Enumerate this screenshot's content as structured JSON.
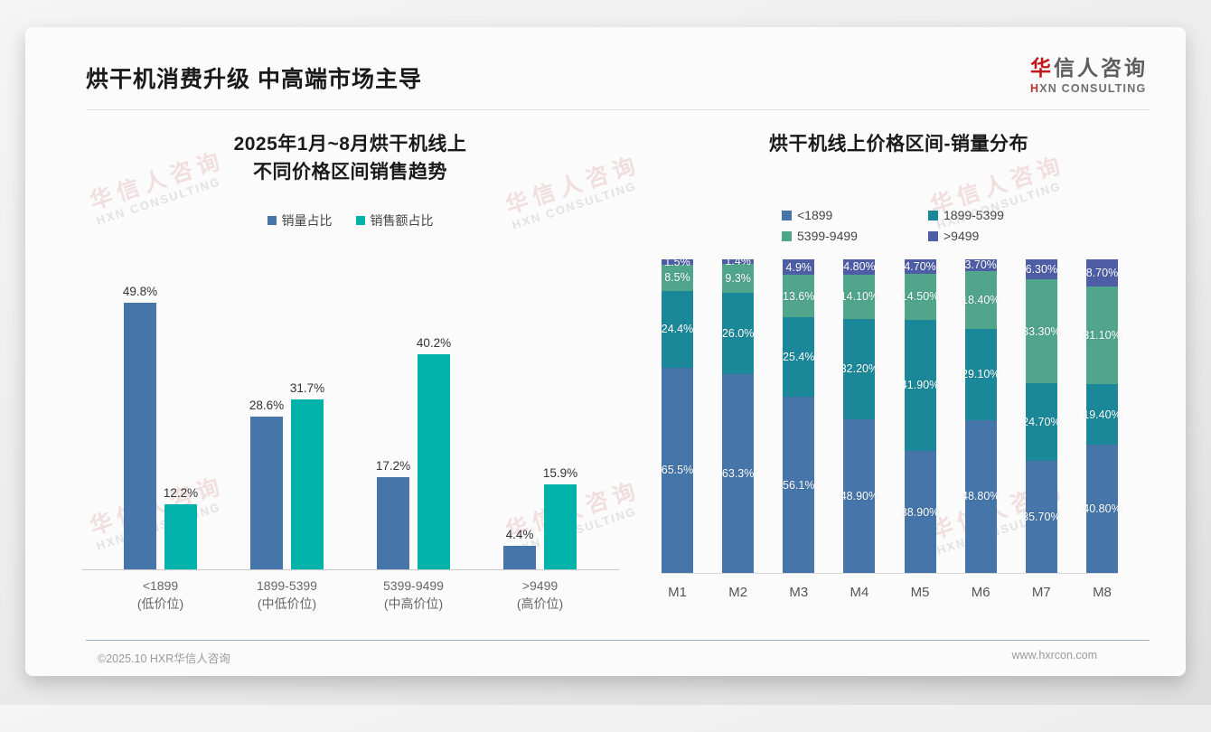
{
  "page": {
    "title": "烘干机消费升级 中高端市场主导",
    "logo": {
      "cn_accent": "华",
      "cn_rest": "信人咨询",
      "en_accent": "H",
      "en_rest": "XN CONSULTING"
    },
    "watermark": {
      "line1": "华信人咨询",
      "line2": "HXN CONSULTING"
    },
    "footer": {
      "copyright": "©2025.10 HXR华信人咨询",
      "website": "www.hxrcon.com"
    }
  },
  "colors": {
    "steel_blue": "#4575a9",
    "bright_teal": "#00b2aa",
    "dark_teal": "#1b8899",
    "sea_green": "#50a58a",
    "slate_blue": "#4e5ea6",
    "accent_red": "#c0191d"
  },
  "chart_data": [
    {
      "type": "bar",
      "title_lines": [
        "2025年1月~8月烘干机线上",
        "不同价格区间销售趋势"
      ],
      "categories": [
        {
          "line1": "<1899",
          "line2": "(低价位)"
        },
        {
          "line1": "1899-5399",
          "line2": "(中低价位)"
        },
        {
          "line1": "5399-9499",
          "line2": "(中高价位)"
        },
        {
          "line1": ">9499",
          "line2": "(高价位)"
        }
      ],
      "series": [
        {
          "name": "销量占比",
          "color": "#4575a9",
          "values": [
            49.8,
            28.6,
            17.2,
            4.4
          ],
          "labels": [
            "49.8%",
            "28.6%",
            "17.2%",
            "4.4%"
          ]
        },
        {
          "name": "销售额占比",
          "color": "#00b2aa",
          "values": [
            12.2,
            31.7,
            40.2,
            15.9
          ],
          "labels": [
            "12.2%",
            "31.7%",
            "40.2%",
            "15.9%"
          ]
        }
      ],
      "ylim": [
        0,
        50
      ],
      "grid": false,
      "legend_position": "top",
      "value_labels_shown": true
    },
    {
      "type": "stacked-bar",
      "title": "烘干机线上价格区间-销量分布",
      "categories": [
        "M1",
        "M2",
        "M3",
        "M4",
        "M5",
        "M6",
        "M7",
        "M8"
      ],
      "series": [
        {
          "name": "<1899",
          "color": "#4575a9",
          "values": [
            65.5,
            63.3,
            56.1,
            48.9,
            38.9,
            48.8,
            35.7,
            40.8
          ],
          "labels": [
            "65.5%",
            "63.3%",
            "56.1%",
            "48.90%",
            "38.90%",
            "48.80%",
            "35.70%",
            "40.80%"
          ]
        },
        {
          "name": "1899-5399",
          "color": "#1b8899",
          "values": [
            24.4,
            26.0,
            25.4,
            32.2,
            41.9,
            29.1,
            24.7,
            19.4
          ],
          "labels": [
            "24.4%",
            "26.0%",
            "25.4%",
            "32.20%",
            "41.90%",
            "29.10%",
            "24.70%",
            "19.40%"
          ]
        },
        {
          "name": "5399-9499",
          "color": "#50a58a",
          "values": [
            8.5,
            9.3,
            13.6,
            14.1,
            14.5,
            18.4,
            33.3,
            31.1
          ],
          "labels": [
            "8.5%",
            "9.3%",
            "13.6%",
            "14.10%",
            "14.50%",
            "18.40%",
            "33.30%",
            "31.10%"
          ]
        },
        {
          "name": ">9499",
          "color": "#4e5ea6",
          "values": [
            1.5,
            1.4,
            4.9,
            4.8,
            4.7,
            3.7,
            6.3,
            8.7
          ],
          "labels": [
            "1.5%",
            "1.4%",
            "4.9%",
            "4.80%",
            "4.70%",
            "3.70%",
            "6.30%",
            "8.70%"
          ]
        }
      ],
      "ylim": [
        0,
        100
      ],
      "grid": false,
      "legend_position": "top",
      "value_labels_shown": true
    }
  ]
}
